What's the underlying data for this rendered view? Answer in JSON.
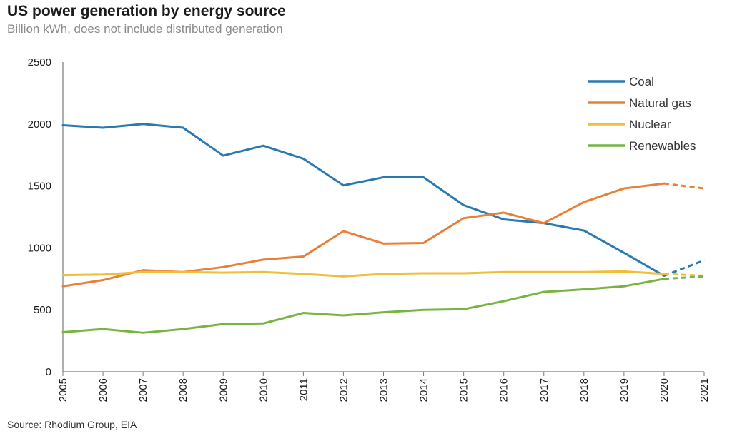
{
  "header": {
    "title": "US power generation by energy source",
    "subtitle": "Billion kWh, does not include distributed generation"
  },
  "footer": {
    "source": "Source: Rhodium Group, EIA"
  },
  "chart_data": {
    "type": "line",
    "title": "US power generation by energy source",
    "subtitle": "Billion kWh, does not include distributed generation",
    "xlabel": "",
    "ylabel": "",
    "x": [
      "2005",
      "2006",
      "2007",
      "2008",
      "2009",
      "2010",
      "2011",
      "2012",
      "2013",
      "2014",
      "2015",
      "2016",
      "2017",
      "2018",
      "2019",
      "2020",
      "2021"
    ],
    "ylim": [
      0,
      2500
    ],
    "yticks": [
      0,
      500,
      1000,
      1500,
      2000,
      2500
    ],
    "grid": false,
    "legend_position": "top-right",
    "projection_start": "2020",
    "series": [
      {
        "name": "Coal",
        "color": "#2a7ab0",
        "values": [
          1990,
          1970,
          2000,
          1970,
          1745,
          1825,
          1720,
          1505,
          1570,
          1570,
          1345,
          1230,
          1200,
          1140,
          960,
          775,
          900
        ]
      },
      {
        "name": "Natural gas",
        "color": "#e8803a",
        "values": [
          690,
          740,
          820,
          805,
          845,
          905,
          930,
          1135,
          1035,
          1040,
          1240,
          1285,
          1200,
          1370,
          1480,
          1520,
          1480
        ]
      },
      {
        "name": "Nuclear",
        "color": "#efbe3a",
        "values": [
          780,
          785,
          805,
          805,
          800,
          805,
          790,
          770,
          790,
          795,
          795,
          805,
          805,
          805,
          810,
          790,
          775
        ]
      },
      {
        "name": "Renewables",
        "color": "#79b443",
        "values": [
          320,
          345,
          315,
          345,
          385,
          390,
          475,
          455,
          480,
          500,
          505,
          570,
          645,
          665,
          690,
          750,
          770
        ]
      }
    ]
  }
}
